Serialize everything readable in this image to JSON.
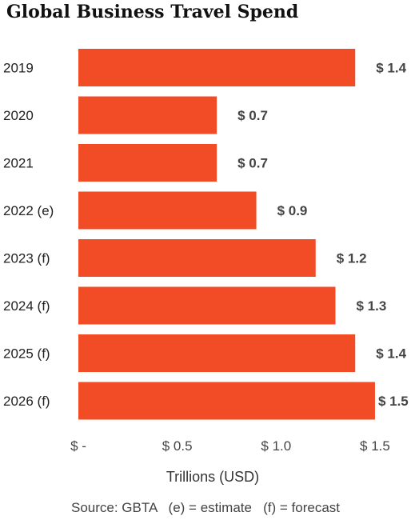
{
  "chart_data": {
    "type": "bar",
    "orientation": "horizontal",
    "title": "Global Business Travel Spend",
    "categories": [
      "2019",
      "2020",
      "2021",
      "2022 (e)",
      "2023 (f)",
      "2024 (f)",
      "2025 (f)",
      "2026 (f)"
    ],
    "values": [
      1.4,
      0.7,
      0.7,
      0.9,
      1.2,
      1.3,
      1.4,
      1.5
    ],
    "value_labels": [
      "$ 1.4",
      "$ 0.7",
      "$ 0.7",
      "$ 0.9",
      "$ 1.2",
      "$ 1.3",
      "$ 1.4",
      "$ 1.5"
    ],
    "xlabel": "Trillions (USD)",
    "ylabel": "",
    "xticks": [
      0,
      0.5,
      1.0,
      1.5
    ],
    "xtick_labels": [
      "$ -",
      "$ 0.5",
      "$ 1.0",
      "$ 1.5"
    ],
    "xlim": [
      0,
      1.5
    ],
    "grid": false,
    "legend": "none",
    "bar_color": "#f24c27"
  },
  "source_note": "Source: GBTA   (e) = estimate   (f) = forecast"
}
